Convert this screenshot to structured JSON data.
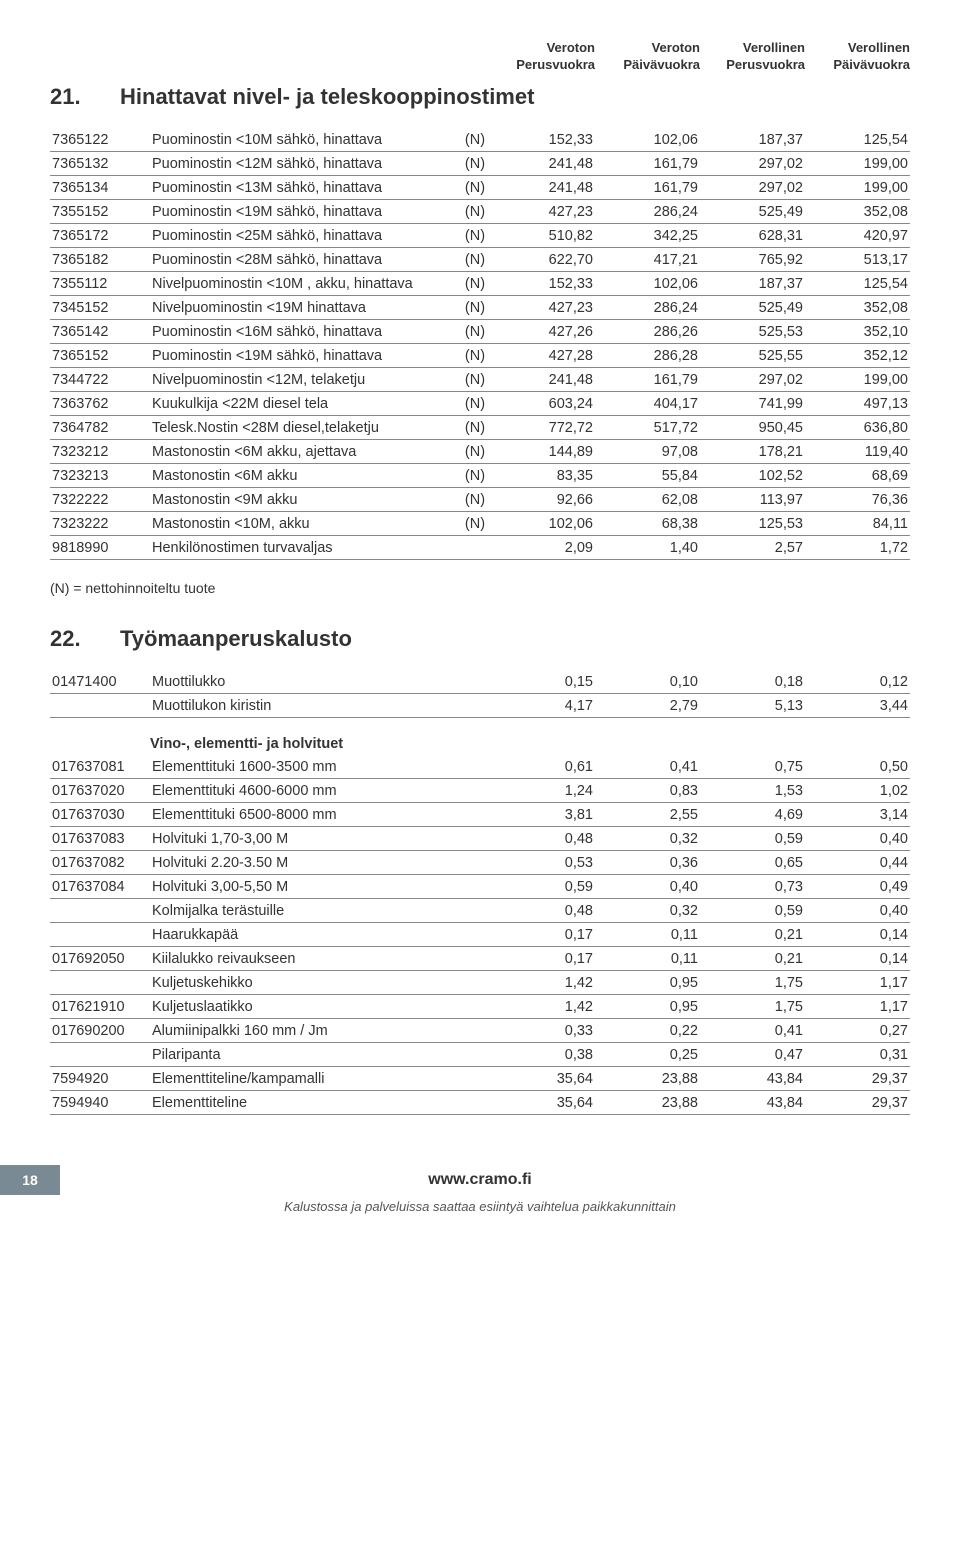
{
  "headers": {
    "h1a": "Veroton",
    "h1b": "Perusvuokra",
    "h2a": "Veroton",
    "h2b": "Päivävuokra",
    "h3a": "Verollinen",
    "h3b": "Perusvuokra",
    "h4a": "Verollinen",
    "h4b": "Päivävuokra"
  },
  "section21": {
    "num": "21.",
    "title": "Hinattavat nivel- ja teleskooppinostimet",
    "rows": [
      {
        "code": "7365122",
        "desc": "Puominostin <10M sähkö, hinattava",
        "n": "(N)",
        "v1": "152,33",
        "v2": "102,06",
        "v3": "187,37",
        "v4": "125,54"
      },
      {
        "code": "7365132",
        "desc": "Puominostin <12M sähkö, hinattava",
        "n": "(N)",
        "v1": "241,48",
        "v2": "161,79",
        "v3": "297,02",
        "v4": "199,00"
      },
      {
        "code": "7365134",
        "desc": "Puominostin <13M sähkö, hinattava",
        "n": "(N)",
        "v1": "241,48",
        "v2": "161,79",
        "v3": "297,02",
        "v4": "199,00"
      },
      {
        "code": "7355152",
        "desc": "Puominostin <19M sähkö, hinattava",
        "n": "(N)",
        "v1": "427,23",
        "v2": "286,24",
        "v3": "525,49",
        "v4": "352,08"
      },
      {
        "code": "7365172",
        "desc": "Puominostin <25M sähkö, hinattava",
        "n": "(N)",
        "v1": "510,82",
        "v2": "342,25",
        "v3": "628,31",
        "v4": "420,97"
      },
      {
        "code": "7365182",
        "desc": "Puominostin <28M sähkö, hinattava",
        "n": "(N)",
        "v1": "622,70",
        "v2": "417,21",
        "v3": "765,92",
        "v4": "513,17"
      },
      {
        "code": "7355112",
        "desc": "Nivelpuominostin <10M , akku, hinattava",
        "n": "(N)",
        "v1": "152,33",
        "v2": "102,06",
        "v3": "187,37",
        "v4": "125,54"
      },
      {
        "code": "7345152",
        "desc": "Nivelpuominostin <19M hinattava",
        "n": "(N)",
        "v1": "427,23",
        "v2": "286,24",
        "v3": "525,49",
        "v4": "352,08"
      },
      {
        "code": "7365142",
        "desc": "Puominostin <16M sähkö, hinattava",
        "n": "(N)",
        "v1": "427,26",
        "v2": "286,26",
        "v3": "525,53",
        "v4": "352,10"
      },
      {
        "code": "7365152",
        "desc": "Puominostin <19M sähkö, hinattava",
        "n": "(N)",
        "v1": "427,28",
        "v2": "286,28",
        "v3": "525,55",
        "v4": "352,12"
      },
      {
        "code": "7344722",
        "desc": "Nivelpuominostin <12M, telaketju",
        "n": "(N)",
        "v1": "241,48",
        "v2": "161,79",
        "v3": "297,02",
        "v4": "199,00"
      },
      {
        "code": "7363762",
        "desc": "Kuukulkija <22M diesel tela",
        "n": "(N)",
        "v1": "603,24",
        "v2": "404,17",
        "v3": "741,99",
        "v4": "497,13"
      },
      {
        "code": "7364782",
        "desc": "Telesk.Nostin <28M diesel,telaketju",
        "n": "(N)",
        "v1": "772,72",
        "v2": "517,72",
        "v3": "950,45",
        "v4": "636,80"
      },
      {
        "code": "7323212",
        "desc": "Mastonostin <6M akku, ajettava",
        "n": "(N)",
        "v1": "144,89",
        "v2": "97,08",
        "v3": "178,21",
        "v4": "119,40"
      },
      {
        "code": "7323213",
        "desc": "Mastonostin <6M akku",
        "n": "(N)",
        "v1": "83,35",
        "v2": "55,84",
        "v3": "102,52",
        "v4": "68,69"
      },
      {
        "code": "7322222",
        "desc": "Mastonostin <9M akku",
        "n": "(N)",
        "v1": "92,66",
        "v2": "62,08",
        "v3": "113,97",
        "v4": "76,36"
      },
      {
        "code": "7323222",
        "desc": "Mastonostin <10M, akku",
        "n": "(N)",
        "v1": "102,06",
        "v2": "68,38",
        "v3": "125,53",
        "v4": "84,11"
      },
      {
        "code": "9818990",
        "desc": "Henkilönostimen turvavaljas",
        "n": "",
        "v1": "2,09",
        "v2": "1,40",
        "v3": "2,57",
        "v4": "1,72"
      }
    ]
  },
  "note": "(N) = nettohinnoiteltu tuote",
  "section22": {
    "num": "22.",
    "title": "Työmaanperuskalusto",
    "rows_a": [
      {
        "code": "01471400",
        "desc": "Muottilukko",
        "n": "",
        "v1": "0,15",
        "v2": "0,10",
        "v3": "0,18",
        "v4": "0,12"
      },
      {
        "code": "",
        "desc": "Muottilukon kiristin",
        "n": "",
        "v1": "4,17",
        "v2": "2,79",
        "v3": "5,13",
        "v4": "3,44"
      }
    ],
    "subheading": "Vino-, elementti- ja holvituet",
    "rows_b": [
      {
        "code": "017637081",
        "desc": "Elementtituki 1600-3500 mm",
        "n": "",
        "v1": "0,61",
        "v2": "0,41",
        "v3": "0,75",
        "v4": "0,50"
      },
      {
        "code": "017637020",
        "desc": "Elementtituki 4600-6000 mm",
        "n": "",
        "v1": "1,24",
        "v2": "0,83",
        "v3": "1,53",
        "v4": "1,02"
      },
      {
        "code": "017637030",
        "desc": "Elementtituki 6500-8000 mm",
        "n": "",
        "v1": "3,81",
        "v2": "2,55",
        "v3": "4,69",
        "v4": "3,14"
      },
      {
        "code": "017637083",
        "desc": "Holvituki 1,70-3,00 M",
        "n": "",
        "v1": "0,48",
        "v2": "0,32",
        "v3": "0,59",
        "v4": "0,40"
      },
      {
        "code": "017637082",
        "desc": "Holvituki 2.20-3.50 M",
        "n": "",
        "v1": "0,53",
        "v2": "0,36",
        "v3": "0,65",
        "v4": "0,44"
      },
      {
        "code": "017637084",
        "desc": "Holvituki 3,00-5,50 M",
        "n": "",
        "v1": "0,59",
        "v2": "0,40",
        "v3": "0,73",
        "v4": "0,49"
      },
      {
        "code": "",
        "desc": "Kolmijalka terästuille",
        "n": "",
        "v1": "0,48",
        "v2": "0,32",
        "v3": "0,59",
        "v4": "0,40"
      },
      {
        "code": "",
        "desc": "Haarukkapää",
        "n": "",
        "v1": "0,17",
        "v2": "0,11",
        "v3": "0,21",
        "v4": "0,14"
      },
      {
        "code": "017692050",
        "desc": "Kiilalukko reivaukseen",
        "n": "",
        "v1": "0,17",
        "v2": "0,11",
        "v3": "0,21",
        "v4": "0,14"
      },
      {
        "code": "",
        "desc": "Kuljetuskehikko",
        "n": "",
        "v1": "1,42",
        "v2": "0,95",
        "v3": "1,75",
        "v4": "1,17"
      },
      {
        "code": "017621910",
        "desc": "Kuljetuslaatikko",
        "n": "",
        "v1": "1,42",
        "v2": "0,95",
        "v3": "1,75",
        "v4": "1,17"
      },
      {
        "code": "017690200",
        "desc": "Alumiinipalkki 160 mm / Jm",
        "n": "",
        "v1": "0,33",
        "v2": "0,22",
        "v3": "0,41",
        "v4": "0,27"
      },
      {
        "code": "",
        "desc": "Pilaripanta",
        "n": "",
        "v1": "0,38",
        "v2": "0,25",
        "v3": "0,47",
        "v4": "0,31"
      },
      {
        "code": "7594920",
        "desc": "Elementtiteline/kampamalli",
        "n": "",
        "v1": "35,64",
        "v2": "23,88",
        "v3": "43,84",
        "v4": "29,37"
      },
      {
        "code": "7594940",
        "desc": "Elementtiteline",
        "n": "",
        "v1": "35,64",
        "v2": "23,88",
        "v3": "43,84",
        "v4": "29,37"
      }
    ]
  },
  "footer": {
    "page": "18",
    "url": "www.cramo.fi",
    "sub": "Kalustossa ja palveluissa saattaa esiintyä vaihtelua paikkakunnittain"
  }
}
